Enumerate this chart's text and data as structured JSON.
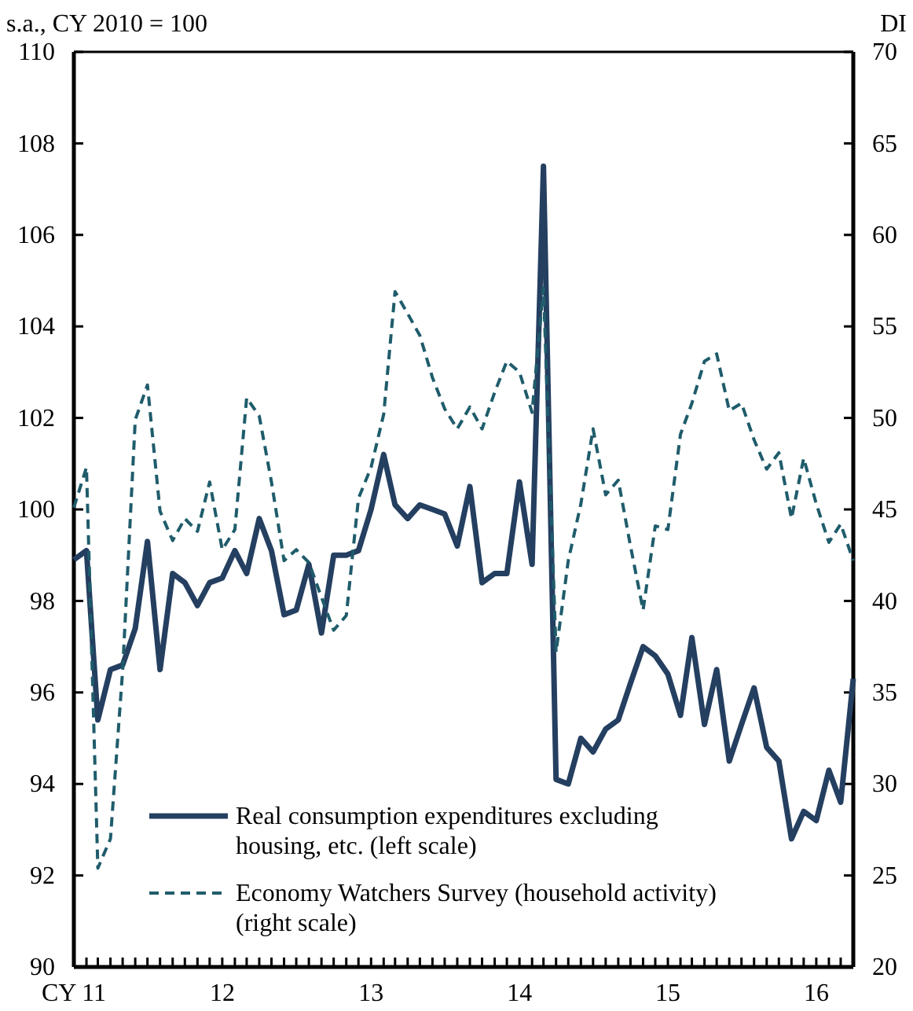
{
  "chart_data": {
    "type": "line",
    "ylabel": "s.a., CY 2010 = 100",
    "y2label": "DI",
    "x": [
      "2011-01",
      "2011-02",
      "2011-03",
      "2011-04",
      "2011-05",
      "2011-06",
      "2011-07",
      "2011-08",
      "2011-09",
      "2011-10",
      "2011-11",
      "2011-12",
      "2012-01",
      "2012-02",
      "2012-03",
      "2012-04",
      "2012-05",
      "2012-06",
      "2012-07",
      "2012-08",
      "2012-09",
      "2012-10",
      "2012-11",
      "2012-12",
      "2013-01",
      "2013-02",
      "2013-03",
      "2013-04",
      "2013-05",
      "2013-06",
      "2013-07",
      "2013-08",
      "2013-09",
      "2013-10",
      "2013-11",
      "2013-12",
      "2014-01",
      "2014-02",
      "2014-03",
      "2014-04",
      "2014-05",
      "2014-06",
      "2014-07",
      "2014-08",
      "2014-09",
      "2014-10",
      "2014-11",
      "2014-12",
      "2015-01",
      "2015-02",
      "2015-03",
      "2015-04",
      "2015-05",
      "2015-06",
      "2015-07",
      "2015-08",
      "2015-09",
      "2015-10",
      "2015-11",
      "2015-12",
      "2016-01",
      "2016-02",
      "2016-03",
      "2016-04"
    ],
    "series": [
      {
        "name": "Real consumption expenditures excluding housing, etc. (left scale)",
        "color": "#243f60",
        "line_style": "solid",
        "values": [
          98.9,
          99.1,
          95.4,
          96.5,
          96.6,
          97.4,
          99.3,
          96.5,
          98.6,
          98.4,
          97.9,
          98.4,
          98.5,
          99.1,
          98.6,
          99.8,
          99.1,
          97.7,
          97.8,
          98.8,
          97.3,
          99.0,
          99.0,
          99.1,
          100.0,
          101.2,
          100.1,
          99.8,
          100.1,
          100.0,
          99.9,
          99.2,
          100.5,
          98.4,
          98.6,
          98.6,
          100.6,
          98.8,
          107.5,
          94.1,
          94.0,
          95.0,
          94.7,
          95.2,
          95.4,
          96.2,
          97.0,
          96.8,
          96.4,
          95.5,
          97.2,
          95.3,
          96.5,
          94.5,
          95.3,
          96.1,
          94.8,
          94.5,
          92.8,
          93.4,
          93.2,
          94.3,
          93.6,
          96.3
        ]
      },
      {
        "name": "Economy Watchers Survey (household activity) (right scale)",
        "color": "#1f5c6b",
        "line_style": "dashed",
        "axis": "y2",
        "values": [
          45.1,
          47.3,
          25.4,
          27.0,
          36.2,
          49.9,
          51.8,
          44.9,
          43.3,
          44.5,
          43.8,
          46.5,
          42.8,
          43.9,
          51.1,
          50.1,
          46.5,
          42.2,
          42.8,
          42.1,
          40.2,
          38.4,
          39.2,
          45.6,
          47.3,
          50.2,
          56.9,
          55.7,
          54.5,
          52.2,
          50.5,
          49.4,
          50.6,
          49.4,
          51.4,
          53.1,
          52.5,
          50.3,
          57.1,
          37.2,
          42.2,
          45.3,
          49.4,
          45.8,
          46.6,
          43.0,
          39.5,
          44.1,
          43.9,
          49.1,
          50.8,
          53.1,
          53.5,
          50.4,
          50.8,
          48.8,
          47.2,
          48.1,
          44.5,
          47.8,
          45.3,
          43.2,
          44.2,
          42.2
        ]
      }
    ],
    "xlim": [
      "2011-01",
      "2016-04"
    ],
    "xticks": [
      {
        "value": "2011-01",
        "label": "CY 11"
      },
      {
        "value": "2011-02",
        "label": null
      },
      {
        "value": "2011-03",
        "label": null
      },
      {
        "value": "2011-04",
        "label": null
      },
      {
        "value": "2011-05",
        "label": null
      },
      {
        "value": "2011-06",
        "label": null
      },
      {
        "value": "2011-07",
        "label": null
      },
      {
        "value": "2011-08",
        "label": null
      },
      {
        "value": "2011-09",
        "label": null
      },
      {
        "value": "2011-10",
        "label": null
      },
      {
        "value": "2011-11",
        "label": null
      },
      {
        "value": "2011-12",
        "label": null
      },
      {
        "value": "2012-01",
        "label": "12"
      },
      {
        "value": "2012-02",
        "label": null
      },
      {
        "value": "2012-03",
        "label": null
      },
      {
        "value": "2012-04",
        "label": null
      },
      {
        "value": "2012-05",
        "label": null
      },
      {
        "value": "2012-06",
        "label": null
      },
      {
        "value": "2012-07",
        "label": null
      },
      {
        "value": "2012-08",
        "label": null
      },
      {
        "value": "2012-09",
        "label": null
      },
      {
        "value": "2012-10",
        "label": null
      },
      {
        "value": "2012-11",
        "label": null
      },
      {
        "value": "2012-12",
        "label": null
      },
      {
        "value": "2013-01",
        "label": "13"
      },
      {
        "value": "2013-02",
        "label": null
      },
      {
        "value": "2013-03",
        "label": null
      },
      {
        "value": "2013-04",
        "label": null
      },
      {
        "value": "2013-05",
        "label": null
      },
      {
        "value": "2013-06",
        "label": null
      },
      {
        "value": "2013-07",
        "label": null
      },
      {
        "value": "2013-08",
        "label": null
      },
      {
        "value": "2013-09",
        "label": null
      },
      {
        "value": "2013-10",
        "label": null
      },
      {
        "value": "2013-11",
        "label": null
      },
      {
        "value": "2013-12",
        "label": null
      },
      {
        "value": "2014-01",
        "label": "14"
      },
      {
        "value": "2014-02",
        "label": null
      },
      {
        "value": "2014-03",
        "label": null
      },
      {
        "value": "2014-04",
        "label": null
      },
      {
        "value": "2014-05",
        "label": null
      },
      {
        "value": "2014-06",
        "label": null
      },
      {
        "value": "2014-07",
        "label": null
      },
      {
        "value": "2014-08",
        "label": null
      },
      {
        "value": "2014-09",
        "label": null
      },
      {
        "value": "2014-10",
        "label": null
      },
      {
        "value": "2014-11",
        "label": null
      },
      {
        "value": "2014-12",
        "label": null
      },
      {
        "value": "2015-01",
        "label": "15"
      },
      {
        "value": "2015-02",
        "label": null
      },
      {
        "value": "2015-03",
        "label": null
      },
      {
        "value": "2015-04",
        "label": null
      },
      {
        "value": "2015-05",
        "label": null
      },
      {
        "value": "2015-06",
        "label": null
      },
      {
        "value": "2015-07",
        "label": null
      },
      {
        "value": "2015-08",
        "label": null
      },
      {
        "value": "2015-09",
        "label": null
      },
      {
        "value": "2015-10",
        "label": null
      },
      {
        "value": "2015-11",
        "label": null
      },
      {
        "value": "2015-12",
        "label": null
      },
      {
        "value": "2016-01",
        "label": "16"
      },
      {
        "value": "2016-02",
        "label": null
      },
      {
        "value": "2016-03",
        "label": null
      }
    ],
    "ylim": [
      90,
      110
    ],
    "yticks": [
      90,
      92,
      94,
      96,
      98,
      100,
      102,
      104,
      106,
      108,
      110
    ],
    "y2lim": [
      20,
      70
    ],
    "y2ticks": [
      20,
      25,
      30,
      35,
      40,
      45,
      50,
      55,
      60,
      65,
      70
    ],
    "grid": false,
    "legend": "bottom",
    "marker": "none"
  }
}
